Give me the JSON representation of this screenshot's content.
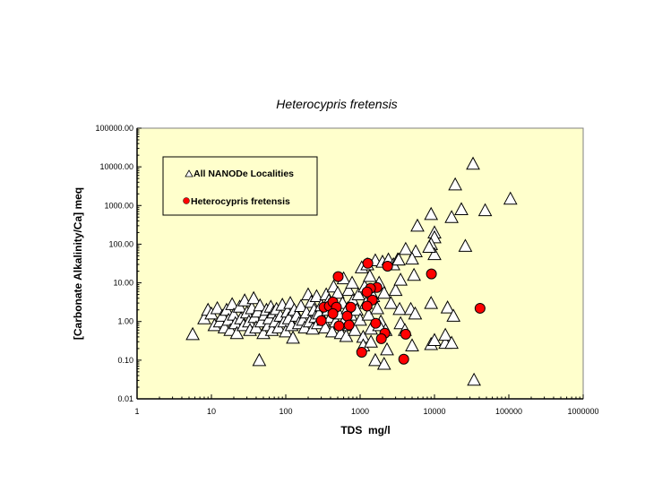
{
  "chart_data": {
    "type": "scatter",
    "title": "Heterocypris fretensis",
    "xlabel": "TDS  mg/l",
    "ylabel": "[Carbonate Alkalinity/Ca] meq",
    "x_scale": "log",
    "y_scale": "log",
    "xlim": [
      1,
      1000000
    ],
    "ylim": [
      0.01,
      100000
    ],
    "x_ticks": [
      "1",
      "10",
      "100",
      "1000",
      "10000",
      "100000",
      "1000000"
    ],
    "y_ticks": [
      "0.01",
      "0.10",
      "1.00",
      "10.00",
      "100.00",
      "1000.00",
      "10000.00",
      "100000.00"
    ],
    "grid": false,
    "background": "#FFFFCC",
    "legend": {
      "placement": "top-left",
      "entries": [
        "All NANODe Localities",
        "Heterocypris fretensis"
      ]
    },
    "series": [
      {
        "name": "All NANODe Localities",
        "marker": "open-triangle",
        "color": "#FFFFFF",
        "points": [
          [
            8,
            1.2
          ],
          [
            9,
            2.0
          ],
          [
            10,
            1.6
          ],
          [
            11,
            0.8
          ],
          [
            12,
            2.2
          ],
          [
            13,
            1.0
          ],
          [
            14,
            1.4
          ],
          [
            15,
            0.7
          ],
          [
            16,
            2.0
          ],
          [
            17,
            1.1
          ],
          [
            18,
            0.6
          ],
          [
            19,
            2.8
          ],
          [
            20,
            1.5
          ],
          [
            21,
            0.9
          ],
          [
            22,
            0.5
          ],
          [
            24,
            2.4
          ],
          [
            25,
            1.2
          ],
          [
            27,
            0.8
          ],
          [
            28,
            3.5
          ],
          [
            30,
            1.7
          ],
          [
            32,
            1.0
          ],
          [
            33,
            0.6
          ],
          [
            35,
            2.2
          ],
          [
            37,
            4.0
          ],
          [
            38,
            1.3
          ],
          [
            40,
            0.7
          ],
          [
            42,
            1.8
          ],
          [
            45,
            2.6
          ],
          [
            47,
            1.0
          ],
          [
            50,
            0.5
          ],
          [
            52,
            1.5
          ],
          [
            55,
            2.0
          ],
          [
            58,
            0.8
          ],
          [
            60,
            1.2
          ],
          [
            63,
            2.4
          ],
          [
            65,
            0.6
          ],
          [
            68,
            1.7
          ],
          [
            72,
            1.0
          ],
          [
            75,
            2.1
          ],
          [
            80,
            0.7
          ],
          [
            85,
            1.4
          ],
          [
            90,
            2.7
          ],
          [
            95,
            1.0
          ],
          [
            100,
            0.55
          ],
          [
            105,
            1.8
          ],
          [
            110,
            1.2
          ],
          [
            115,
            3.0
          ],
          [
            120,
            0.8
          ],
          [
            125,
            0.38
          ],
          [
            130,
            2.0
          ],
          [
            140,
            1.4
          ],
          [
            150,
            0.9
          ],
          [
            160,
            2.5
          ],
          [
            170,
            1.1
          ],
          [
            180,
            0.7
          ],
          [
            190,
            1.7
          ],
          [
            200,
            5.0
          ],
          [
            210,
            1.0
          ],
          [
            220,
            3.2
          ],
          [
            230,
            0.65
          ],
          [
            240,
            2.0
          ],
          [
            250,
            1.3
          ],
          [
            260,
            4.5
          ],
          [
            270,
            0.9
          ],
          [
            280,
            1.6
          ],
          [
            300,
            2.6
          ],
          [
            320,
            1.1
          ],
          [
            340,
            0.7
          ],
          [
            350,
            5.0
          ],
          [
            370,
            2.0
          ],
          [
            380,
            3.5
          ],
          [
            400,
            1.3
          ],
          [
            420,
            0.55
          ],
          [
            440,
            8.0
          ],
          [
            450,
            2.4
          ],
          [
            470,
            1.0
          ],
          [
            500,
            5.5
          ],
          [
            520,
            1.6
          ],
          [
            550,
            0.5
          ],
          [
            580,
            3.0
          ],
          [
            600,
            13
          ],
          [
            620,
            1.1
          ],
          [
            650,
            0.42
          ],
          [
            680,
            2.2
          ],
          [
            700,
            6.5
          ],
          [
            720,
            0.8
          ],
          [
            750,
            1.5
          ],
          [
            780,
            10
          ],
          [
            800,
            3.5
          ],
          [
            850,
            0.6
          ],
          [
            900,
            2.0
          ],
          [
            950,
            5.0
          ],
          [
            1000,
            1.1
          ],
          [
            1050,
            25
          ],
          [
            1100,
            0.4
          ],
          [
            1150,
            8.0
          ],
          [
            1200,
            3.0
          ],
          [
            1250,
            30
          ],
          [
            1300,
            1.5
          ],
          [
            1350,
            15
          ],
          [
            1400,
            0.65
          ],
          [
            1500,
            4.5
          ],
          [
            1600,
            38
          ],
          [
            1700,
            2.2
          ],
          [
            1800,
            10
          ],
          [
            1900,
            1.0
          ],
          [
            2000,
            35
          ],
          [
            2100,
            5.5
          ],
          [
            2200,
            0.6
          ],
          [
            2400,
            40
          ],
          [
            2600,
            3.0
          ],
          [
            2800,
            30
          ],
          [
            3000,
            6.5
          ],
          [
            3200,
            40
          ],
          [
            5.6,
            0.47
          ],
          [
            44,
            0.1
          ],
          [
            34000,
            0.031
          ],
          [
            33000,
            12000
          ],
          [
            19000,
            3500
          ],
          [
            48000,
            750
          ],
          [
            105000,
            1500
          ],
          [
            23000,
            800
          ],
          [
            17000,
            500
          ],
          [
            9000,
            600
          ],
          [
            5900,
            300
          ],
          [
            10000,
            200
          ],
          [
            10000,
            150
          ],
          [
            26000,
            90
          ],
          [
            9000,
            100
          ],
          [
            10000,
            55
          ],
          [
            8500,
            85
          ],
          [
            5600,
            65
          ],
          [
            4100,
            75
          ],
          [
            5000,
            42
          ],
          [
            3300,
            40
          ],
          [
            5300,
            16
          ],
          [
            3500,
            12
          ],
          [
            3400,
            2.1
          ],
          [
            4800,
            2.1
          ],
          [
            9000,
            3.0
          ],
          [
            15000,
            2.3
          ],
          [
            18000,
            1.4
          ],
          [
            5500,
            1.6
          ],
          [
            3500,
            0.9
          ],
          [
            9000,
            0.26
          ],
          [
            10000,
            0.33
          ],
          [
            14000,
            0.28
          ],
          [
            14000,
            0.45
          ],
          [
            17000,
            0.28
          ],
          [
            5000,
            0.24
          ],
          [
            1600,
            0.1
          ],
          [
            2100,
            0.08
          ],
          [
            2300,
            0.19
          ],
          [
            1100,
            0.24
          ],
          [
            4000,
            0.6
          ],
          [
            1400,
            0.3
          ],
          [
            1800,
            0.8
          ]
        ]
      },
      {
        "name": "Heterocypris fretensis",
        "marker": "filled-circle",
        "color": "#FF0000",
        "points": [
          [
            507,
            14.5
          ],
          [
            1270,
            32
          ],
          [
            2340,
            27
          ],
          [
            9100,
            17
          ],
          [
            41000,
            2.2
          ],
          [
            4100,
            0.47
          ],
          [
            3860,
            0.106
          ],
          [
            1050,
            0.16
          ],
          [
            2150,
            0.5
          ],
          [
            1930,
            0.36
          ],
          [
            1620,
            0.9
          ],
          [
            1460,
            3.6
          ],
          [
            1680,
            7.6
          ],
          [
            1380,
            7.2
          ],
          [
            1240,
            5.8
          ],
          [
            1240,
            2.5
          ],
          [
            750,
            2.35
          ],
          [
            670,
            1.38
          ],
          [
            710,
            0.81
          ],
          [
            520,
            0.77
          ],
          [
            300,
            1.05
          ],
          [
            325,
            2.35
          ],
          [
            385,
            2.5
          ],
          [
            430,
            3.2
          ],
          [
            480,
            2.35
          ],
          [
            430,
            1.6
          ]
        ]
      }
    ]
  }
}
